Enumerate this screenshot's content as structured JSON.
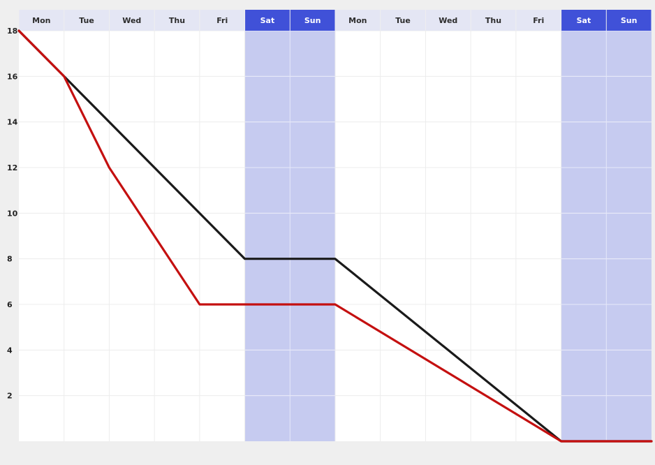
{
  "chart_data": {
    "type": "line",
    "title": "",
    "xlabel": "",
    "ylabel": "",
    "categories": [
      "Mon",
      "Tue",
      "Wed",
      "Thu",
      "Fri",
      "Sat",
      "Sun",
      "Mon",
      "Tue",
      "Wed",
      "Thu",
      "Fri",
      "Sat",
      "Sun"
    ],
    "weekend_days": [
      "Sat",
      "Sun"
    ],
    "y_ticks": [
      2,
      4,
      6,
      8,
      10,
      12,
      14,
      16,
      18
    ],
    "ylim": [
      0,
      18
    ],
    "xlim": [
      0,
      14
    ],
    "grid": true,
    "series": [
      {
        "color": "#1a1a1a",
        "points": [
          [
            0,
            18
          ],
          [
            1,
            16
          ],
          [
            5,
            8
          ],
          [
            7,
            8
          ],
          [
            12,
            0
          ],
          [
            14,
            0
          ]
        ]
      },
      {
        "color": "#c41010",
        "points": [
          [
            0,
            18
          ],
          [
            1,
            16
          ],
          [
            2,
            12
          ],
          [
            4,
            6
          ],
          [
            7,
            6
          ],
          [
            12,
            0
          ],
          [
            14,
            0
          ]
        ]
      }
    ]
  },
  "colors": {
    "header_weekday_bg": "#e4e6f4",
    "header_weekday_text": "#2c2c2c",
    "header_weekend_bg": "#4051d8",
    "header_weekend_text": "#ffffff",
    "weekend_column_bg": "#c6cbf0",
    "plot_bg": "#ffffff",
    "grid_line": "#ececec",
    "weekend_grid_line": "#e6e8fa"
  }
}
